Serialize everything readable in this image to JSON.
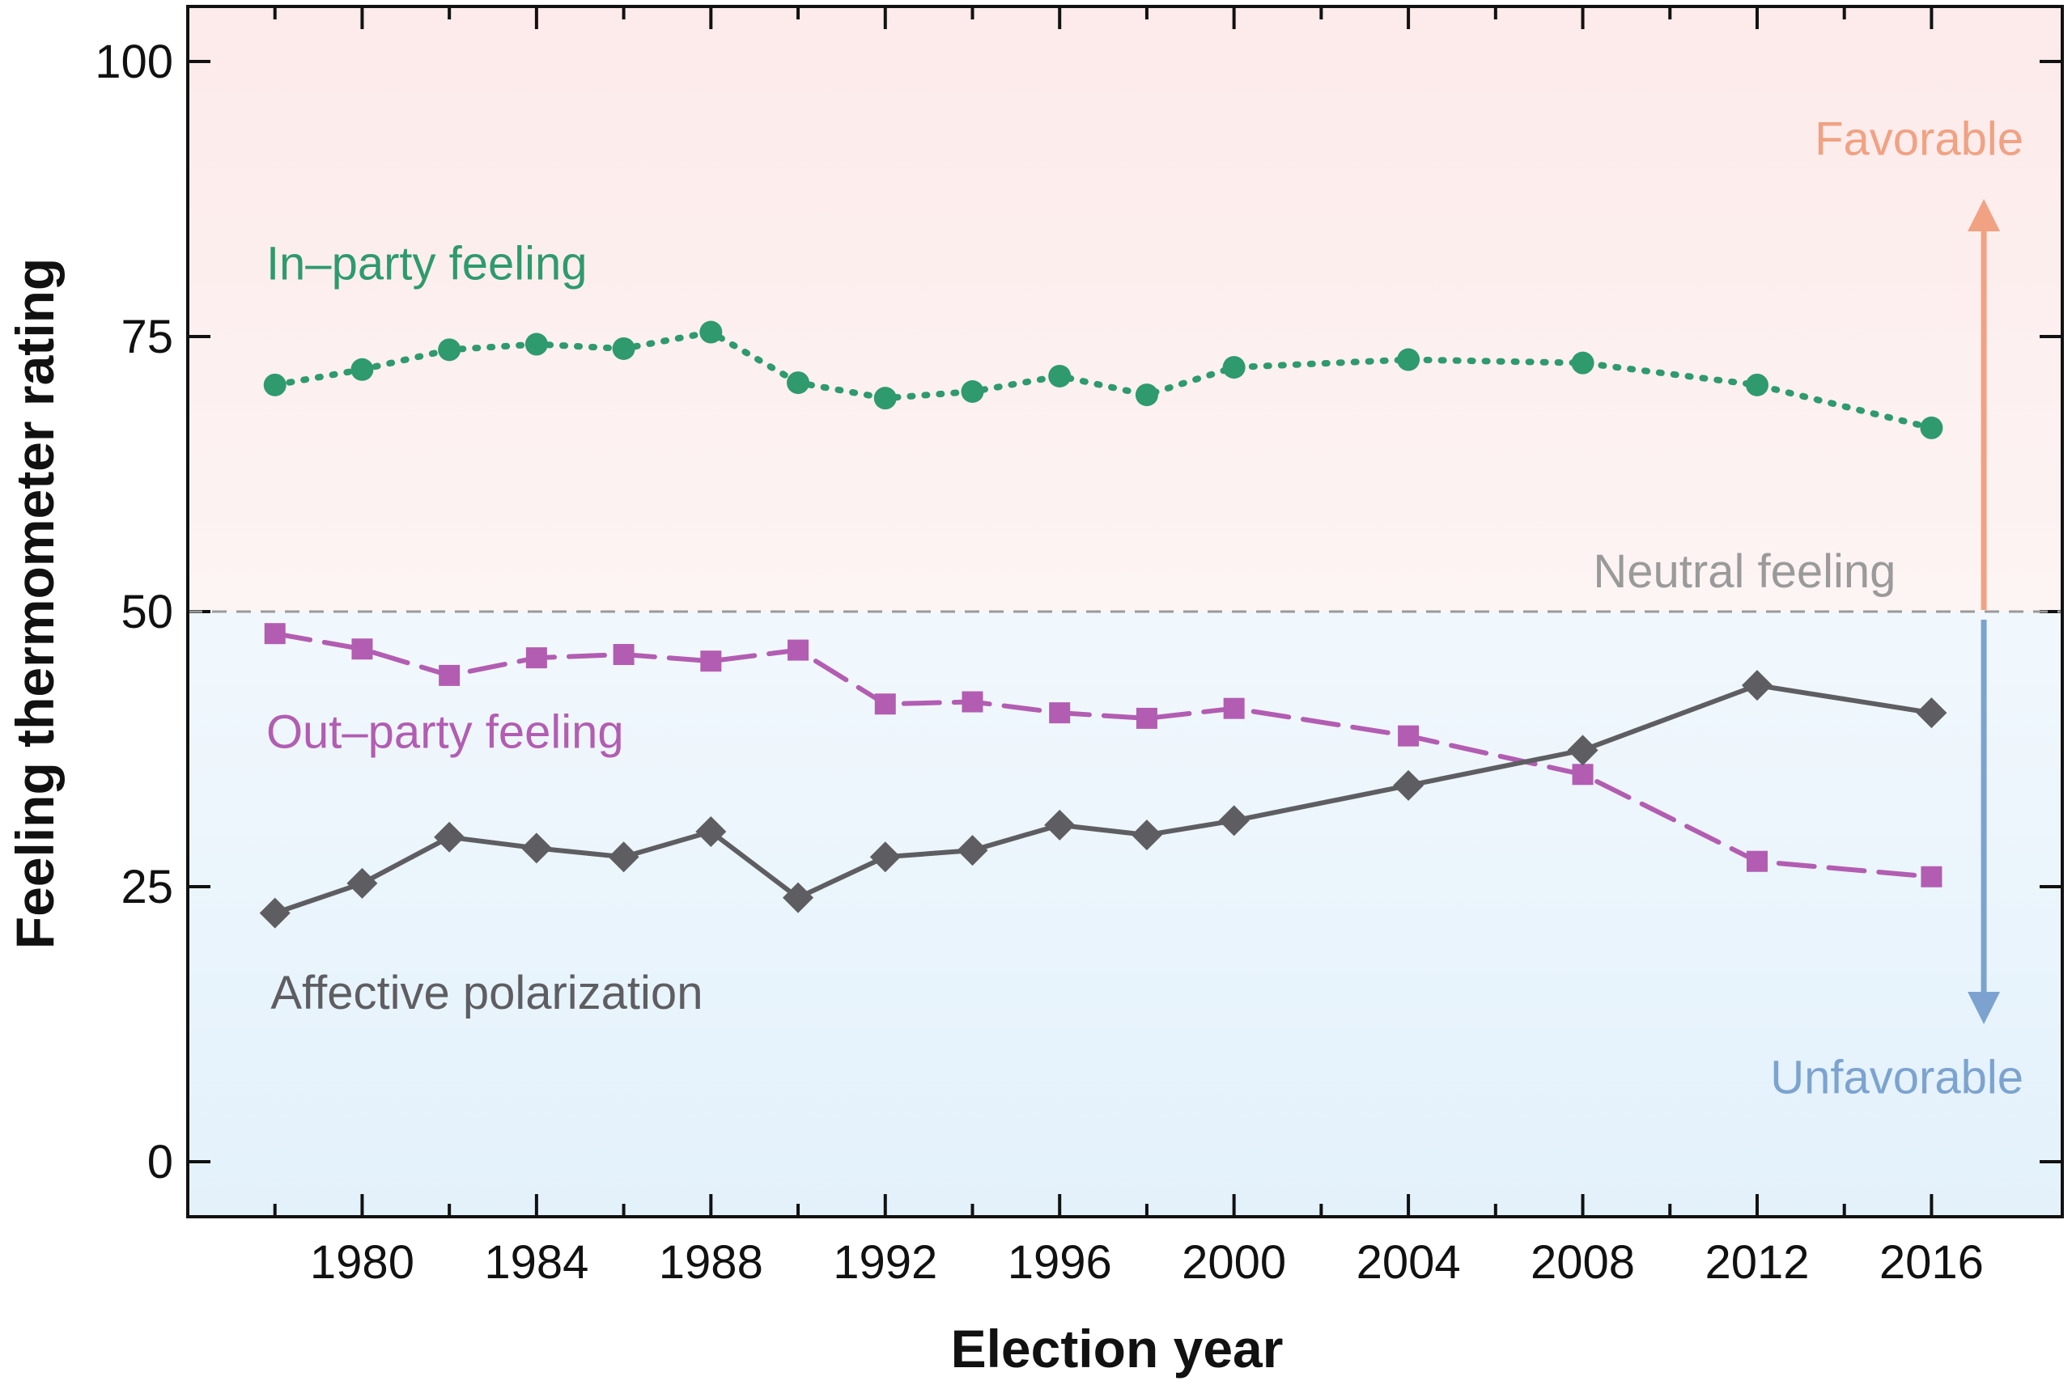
{
  "chart_data": {
    "type": "line",
    "title": "",
    "xlabel": "Election year",
    "ylabel": "Feeling thermometer rating",
    "xlim": [
      1976,
      2019
    ],
    "ylim": [
      -5,
      105
    ],
    "x_ticks": [
      1980,
      1984,
      1988,
      1992,
      1996,
      2000,
      2004,
      2008,
      2012,
      2016
    ],
    "y_ticks": [
      0,
      25,
      50,
      75,
      100
    ],
    "grid": false,
    "legend": "none",
    "series": [
      {
        "name": "In–party feeling",
        "color": "#2e9a6d",
        "style": "dotted",
        "marker": "circle",
        "x": [
          1978,
          1980,
          1982,
          1984,
          1986,
          1988,
          1990,
          1992,
          1994,
          1996,
          1998,
          2000,
          2004,
          2008,
          2012,
          2016
        ],
        "values": [
          70.6,
          72.0,
          73.8,
          74.3,
          73.9,
          75.4,
          70.8,
          69.4,
          70.0,
          71.4,
          69.7,
          72.2,
          72.9,
          72.6,
          70.6,
          66.7
        ]
      },
      {
        "name": "Out–party feeling",
        "color": "#b25db2",
        "style": "dashed",
        "marker": "square",
        "x": [
          1978,
          1980,
          1982,
          1984,
          1986,
          1988,
          1990,
          1992,
          1994,
          1996,
          1998,
          2000,
          2004,
          2008,
          2012,
          2016
        ],
        "values": [
          48.0,
          46.6,
          44.2,
          45.8,
          46.1,
          45.5,
          46.5,
          41.6,
          41.8,
          40.8,
          40.3,
          41.2,
          38.7,
          35.2,
          27.3,
          25.9
        ]
      },
      {
        "name": "Affective polarization",
        "color": "#5e5e62",
        "style": "solid",
        "marker": "diamond",
        "x": [
          1978,
          1980,
          1982,
          1984,
          1986,
          1988,
          1990,
          1992,
          1994,
          1996,
          1998,
          2000,
          2004,
          2008,
          2012,
          2016
        ],
        "values": [
          22.6,
          25.3,
          29.5,
          28.5,
          27.7,
          30.0,
          24.0,
          27.7,
          28.3,
          30.6,
          29.7,
          31.0,
          34.2,
          37.4,
          43.3,
          40.8
        ]
      }
    ],
    "annotations": {
      "neutral_label": "Neutral feeling",
      "neutral_value": 50,
      "favorable_label": "Favorable",
      "unfavorable_label": "Unfavorable",
      "favorable_color": "#f0a283",
      "unfavorable_color": "#7ca3cf",
      "neutral_color": "#9a9a9a",
      "top_bg_color": "#fdeaea",
      "bottom_bg_color": "#e3f1fb"
    }
  }
}
